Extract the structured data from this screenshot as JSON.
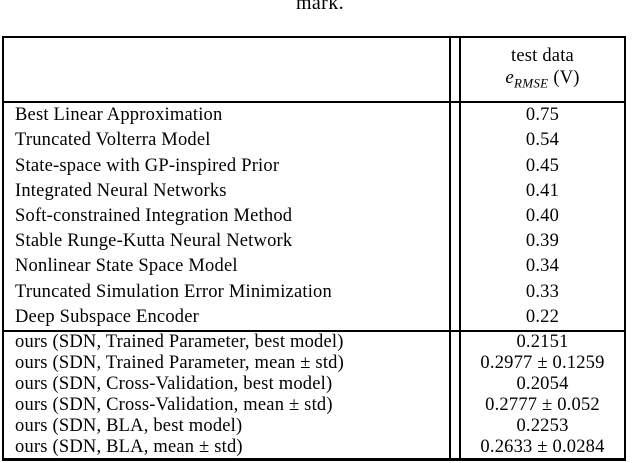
{
  "caption_fragment": "mark.",
  "colors": {
    "text": "#000000",
    "background": "#ffffff",
    "border": "#000000"
  },
  "table": {
    "header": {
      "line1": "test data",
      "symbol": "e",
      "subscript": "RMSE",
      "unit": "(V)"
    },
    "benchmark_rows": [
      {
        "method": "Best Linear Approximation",
        "value": "0.75"
      },
      {
        "method": "Truncated Volterra Model",
        "value": "0.54"
      },
      {
        "method": "State-space with GP-inspired Prior",
        "value": "0.45"
      },
      {
        "method": "Integrated Neural Networks",
        "value": "0.41"
      },
      {
        "method": "Soft-constrained Integration Method",
        "value": "0.40"
      },
      {
        "method": "Stable Runge-Kutta Neural Network",
        "value": "0.39"
      },
      {
        "method": "Nonlinear State Space Model",
        "value": "0.34"
      },
      {
        "method": "Truncated Simulation Error Minimization",
        "value": "0.33"
      },
      {
        "method": "Deep Subspace Encoder",
        "value": "0.22"
      }
    ],
    "ours_rows": [
      {
        "method": "ours (SDN, Trained Parameter, best model)",
        "value": "0.2151"
      },
      {
        "method": "ours (SDN, Trained Parameter, mean ± std)",
        "value": "0.2977 ± 0.1259"
      },
      {
        "method": "ours (SDN, Cross-Validation, best model)",
        "value": "0.2054"
      },
      {
        "method": "ours (SDN, Cross-Validation, mean ± std)",
        "value": "0.2777 ± 0.052"
      },
      {
        "method": "ours (SDN, BLA, best model)",
        "value": "0.2253"
      },
      {
        "method": "ours (SDN, BLA, mean ± std)",
        "value": "0.2633 ± 0.0284"
      }
    ]
  }
}
